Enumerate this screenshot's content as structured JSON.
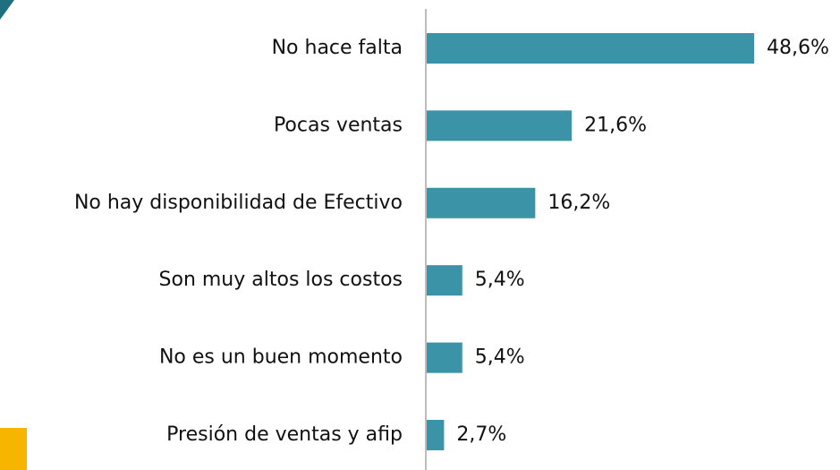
{
  "chart_data": {
    "type": "hbar",
    "categories": [
      "No hace falta",
      "Pocas ventas",
      "No hay disponibilidad de Efectivo",
      "Son muy altos los costos",
      "No es un buen momento",
      "Presión de ventas y afip"
    ],
    "values": [
      48.6,
      21.6,
      16.2,
      5.4,
      5.4,
      2.7
    ],
    "value_labels": [
      "48,6%",
      "21,6%",
      "16,2%",
      "5,4%",
      "5,4%",
      "2,7%"
    ],
    "color": "#3b93a8"
  }
}
